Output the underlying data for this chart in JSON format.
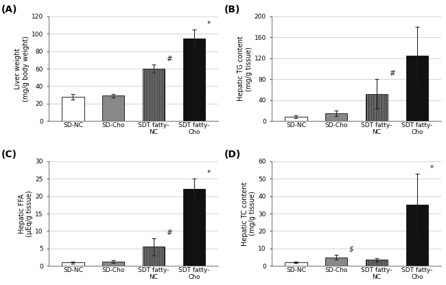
{
  "panels": [
    {
      "label": "A",
      "ylabel": "Liver weight\n(mg/g body weight)",
      "ylim": [
        0,
        120
      ],
      "yticks": [
        0,
        20,
        40,
        60,
        80,
        100,
        120
      ],
      "bars": [
        28,
        29,
        60,
        95
      ],
      "errors": [
        3,
        2,
        5,
        10
      ],
      "sig_labels": [
        "",
        "",
        "#",
        "*"
      ],
      "sig_bar_idx": [
        2,
        3
      ]
    },
    {
      "label": "B",
      "ylabel": "Hepatic TG content\n(mg/g tissue)",
      "ylim": [
        0,
        200
      ],
      "yticks": [
        0,
        40,
        80,
        120,
        160,
        200
      ],
      "bars": [
        8,
        15,
        52,
        125
      ],
      "errors": [
        3,
        5,
        28,
        55
      ],
      "sig_labels": [
        "",
        "",
        "#",
        ""
      ],
      "sig_bar_idx": [
        2
      ]
    },
    {
      "label": "C",
      "ylabel": "Hepatic FFA\n(μEq/g tissue)",
      "ylim": [
        0,
        30
      ],
      "yticks": [
        0,
        5,
        10,
        15,
        20,
        25,
        30
      ],
      "bars": [
        1.0,
        1.3,
        5.5,
        22
      ],
      "errors": [
        0.3,
        0.4,
        2.5,
        3
      ],
      "sig_labels": [
        "",
        "",
        "#",
        "*"
      ],
      "sig_bar_idx": [
        2,
        3
      ]
    },
    {
      "label": "D",
      "ylabel": "Hepatic TC content\n(mg/g tissue)",
      "ylim": [
        0,
        60
      ],
      "yticks": [
        0,
        10,
        20,
        30,
        40,
        50,
        60
      ],
      "bars": [
        2,
        5,
        3.5,
        35
      ],
      "errors": [
        0.5,
        1.5,
        1.0,
        18
      ],
      "sig_labels": [
        "",
        "$",
        "",
        "*"
      ],
      "sig_bar_idx": [
        1,
        3
      ]
    }
  ],
  "categories": [
    "SD-NC",
    "SD-Cho",
    "SDT fatty-\nNC",
    "SDT fatty-\nCho"
  ],
  "bar_colors": [
    "#ffffff",
    "#888888",
    "#b0b0b0",
    "#111111"
  ],
  "bar_edgecolor": "#222222",
  "bar_hatch": [
    null,
    null,
    "|||||||",
    null
  ],
  "error_color": "#222222",
  "sig_color": "#111111",
  "background_color": "#ffffff",
  "grid_color": "#cccccc",
  "tick_fontsize": 6.5,
  "label_fontsize": 7,
  "panel_label_fontsize": 10
}
